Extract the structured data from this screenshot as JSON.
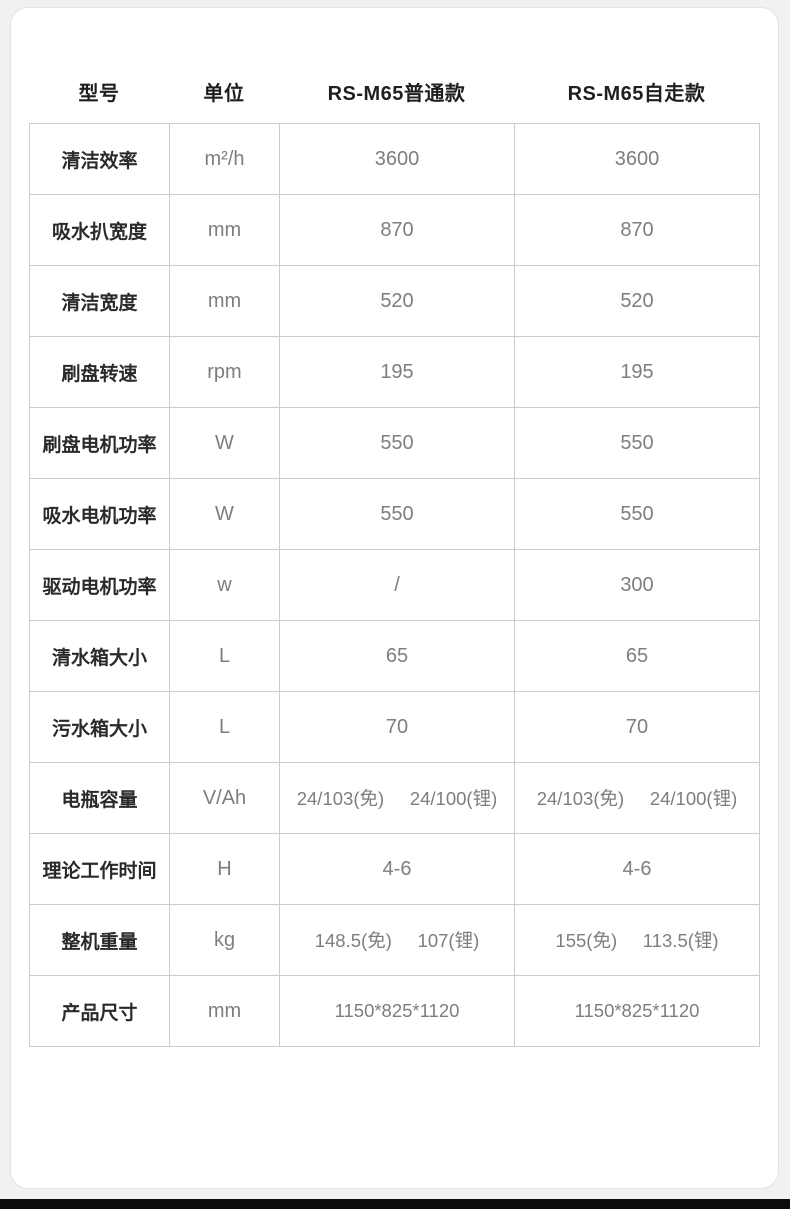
{
  "colors": {
    "page_bg": "#f1f1f1",
    "card_bg": "#ffffff",
    "table_border": "#cccccc",
    "header_text": "#1f1f1f",
    "label_text": "#2a2a2a",
    "value_text": "#7e7e7e",
    "bottom_bar": "#0d0d0d"
  },
  "table": {
    "headers": [
      "型号",
      "单位",
      "RS-M65普通款",
      "RS-M65自走款"
    ],
    "rows": [
      {
        "label": "清洁效率",
        "unit": "m²/h",
        "standard": "3600",
        "self_propelled": "3600"
      },
      {
        "label": "吸水扒宽度",
        "unit": "mm",
        "standard": "870",
        "self_propelled": "870"
      },
      {
        "label": "清洁宽度",
        "unit": "mm",
        "standard": "520",
        "self_propelled": "520"
      },
      {
        "label": "刷盘转速",
        "unit": "rpm",
        "standard": "195",
        "self_propelled": "195"
      },
      {
        "label": "刷盘电机功率",
        "unit": "W",
        "standard": "550",
        "self_propelled": "550"
      },
      {
        "label": "吸水电机功率",
        "unit": "W",
        "standard": "550",
        "self_propelled": "550"
      },
      {
        "label": "驱动电机功率",
        "unit": "w",
        "standard": "/",
        "self_propelled": "300"
      },
      {
        "label": "清水箱大小",
        "unit": "L",
        "standard": "65",
        "self_propelled": "65"
      },
      {
        "label": "污水箱大小",
        "unit": "L",
        "standard": "70",
        "self_propelled": "70"
      },
      {
        "label": "电瓶容量",
        "unit": "V/Ah",
        "standard": "24/103(免)     24/100(锂)",
        "self_propelled": "24/103(免)     24/100(锂)"
      },
      {
        "label": "理论工作时间",
        "unit": "H",
        "standard": "4-6",
        "self_propelled": "4-6"
      },
      {
        "label": "整机重量",
        "unit": "kg",
        "standard": "148.5(免)     107(锂)",
        "self_propelled": "155(免)     113.5(锂)"
      },
      {
        "label": "产品尺寸",
        "unit": "mm",
        "standard": "1150*825*1120",
        "self_propelled": "1150*825*1120"
      }
    ]
  }
}
